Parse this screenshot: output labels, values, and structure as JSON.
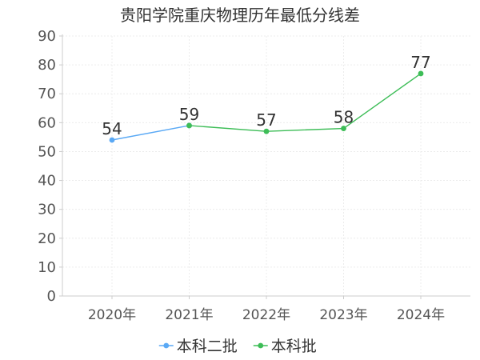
{
  "chart_data": {
    "type": "line",
    "title": "贵阳学院重庆物理历年最低分线差",
    "xlabel": "",
    "ylabel": "",
    "categories": [
      "2020年",
      "2021年",
      "2022年",
      "2023年",
      "2024年"
    ],
    "ylim": [
      0,
      90
    ],
    "yticks": [
      0,
      10,
      20,
      30,
      40,
      50,
      60,
      70,
      80,
      90
    ],
    "grid": true,
    "legend_position": "bottom",
    "series": [
      {
        "name": "本科二批",
        "color": "#5aa9f5",
        "values": [
          54,
          59,
          null,
          null,
          null
        ]
      },
      {
        "name": "本科批",
        "color": "#3dbd57",
        "values": [
          null,
          59,
          57,
          58,
          77
        ]
      }
    ],
    "data_labels": [
      {
        "category": "2020年",
        "value": 54
      },
      {
        "category": "2021年",
        "value": 59
      },
      {
        "category": "2022年",
        "value": 57
      },
      {
        "category": "2023年",
        "value": 58
      },
      {
        "category": "2024年",
        "value": 77
      }
    ]
  }
}
